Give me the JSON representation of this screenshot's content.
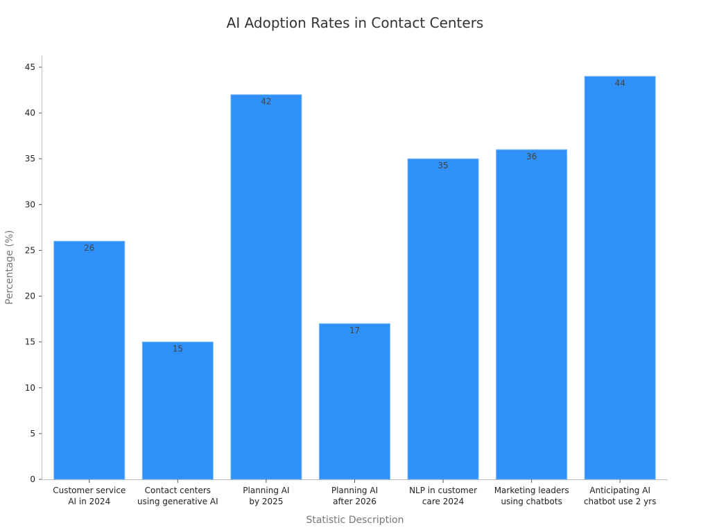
{
  "chart_data": {
    "type": "bar",
    "title": "AI Adoption Rates in Contact Centers",
    "xlabel": "Statistic Description",
    "ylabel": "Percentage (%)",
    "categories": [
      [
        "Customer service",
        "AI in 2024"
      ],
      [
        "Contact centers",
        "using generative AI"
      ],
      [
        "Planning AI",
        "by 2025"
      ],
      [
        "Planning AI",
        "after 2026"
      ],
      [
        "NLP in customer",
        "care 2024"
      ],
      [
        "Marketing leaders",
        "using chatbots"
      ],
      [
        "Anticipating AI",
        "chatbot use 2 yrs"
      ]
    ],
    "values": [
      26,
      15,
      42,
      17,
      35,
      36,
      44
    ],
    "ylim": [
      0,
      45
    ],
    "yticks": [
      0,
      5,
      10,
      15,
      20,
      25,
      30,
      35,
      40,
      45
    ],
    "grid": false,
    "bar_color": "#2f91f8",
    "bar_edge_color": "#7ab8f5"
  }
}
